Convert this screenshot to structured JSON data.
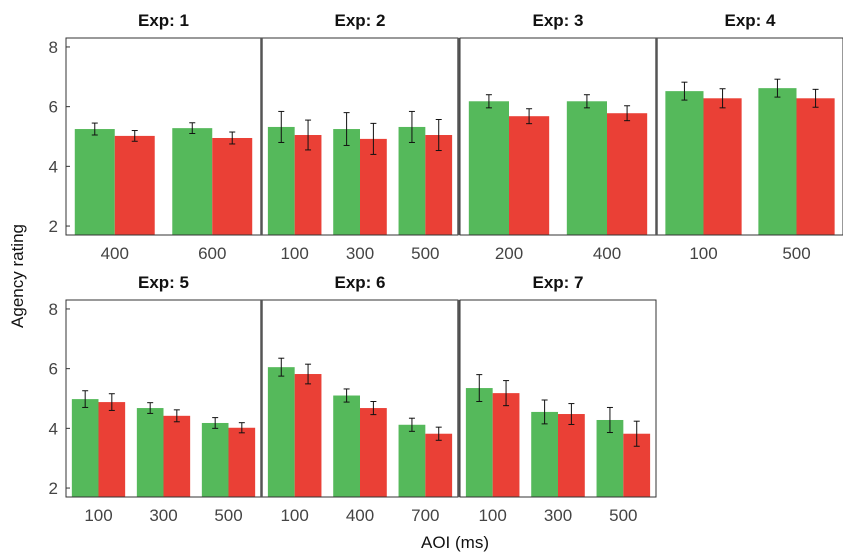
{
  "chart_data": {
    "type": "bar",
    "xlabel": "AOI (ms)",
    "ylabel": "Agency rating",
    "ylim": [
      1.7,
      8.3
    ],
    "yticks": [
      2,
      4,
      6,
      8
    ],
    "colors": {
      "series_a": "#55b95b",
      "series_b": "#ea4036"
    },
    "panels": [
      {
        "title": "Exp: 1",
        "categories": [
          "400",
          "600"
        ],
        "series": [
          {
            "values": [
              5.25,
              5.28
            ],
            "errors": [
              0.2,
              0.18
            ]
          },
          {
            "values": [
              5.02,
              4.95
            ],
            "errors": [
              0.18,
              0.2
            ]
          }
        ]
      },
      {
        "title": "Exp: 2",
        "categories": [
          "100",
          "300",
          "500"
        ],
        "series": [
          {
            "values": [
              5.32,
              5.25,
              5.32
            ],
            "errors": [
              0.52,
              0.55,
              0.52
            ]
          },
          {
            "values": [
              5.05,
              4.92,
              5.05
            ],
            "errors": [
              0.5,
              0.52,
              0.52
            ]
          }
        ]
      },
      {
        "title": "Exp: 3",
        "categories": [
          "200",
          "400"
        ],
        "series": [
          {
            "values": [
              6.18,
              6.18
            ],
            "errors": [
              0.22,
              0.22
            ]
          },
          {
            "values": [
              5.68,
              5.78
            ],
            "errors": [
              0.25,
              0.25
            ]
          }
        ]
      },
      {
        "title": "Exp: 4",
        "categories": [
          "100",
          "500"
        ],
        "series": [
          {
            "values": [
              6.52,
              6.62
            ],
            "errors": [
              0.3,
              0.3
            ]
          },
          {
            "values": [
              6.28,
              6.28
            ],
            "errors": [
              0.32,
              0.3
            ]
          }
        ]
      },
      {
        "title": "Exp: 5",
        "categories": [
          "100",
          "300",
          "500"
        ],
        "series": [
          {
            "values": [
              4.98,
              4.68,
              4.18
            ],
            "errors": [
              0.28,
              0.18,
              0.18
            ]
          },
          {
            "values": [
              4.88,
              4.42,
              4.02
            ],
            "errors": [
              0.28,
              0.2,
              0.17
            ]
          }
        ]
      },
      {
        "title": "Exp: 6",
        "categories": [
          "100",
          "400",
          "700"
        ],
        "series": [
          {
            "values": [
              6.05,
              5.1,
              4.12
            ],
            "errors": [
              0.3,
              0.22,
              0.22
            ]
          },
          {
            "values": [
              5.82,
              4.68,
              3.82
            ],
            "errors": [
              0.33,
              0.22,
              0.22
            ]
          }
        ]
      },
      {
        "title": "Exp: 7",
        "categories": [
          "100",
          "300",
          "500"
        ],
        "series": [
          {
            "values": [
              5.35,
              4.55,
              4.28
            ],
            "errors": [
              0.45,
              0.4,
              0.42
            ]
          },
          {
            "values": [
              5.18,
              4.48,
              3.82
            ],
            "errors": [
              0.42,
              0.35,
              0.42
            ]
          }
        ]
      }
    ]
  }
}
